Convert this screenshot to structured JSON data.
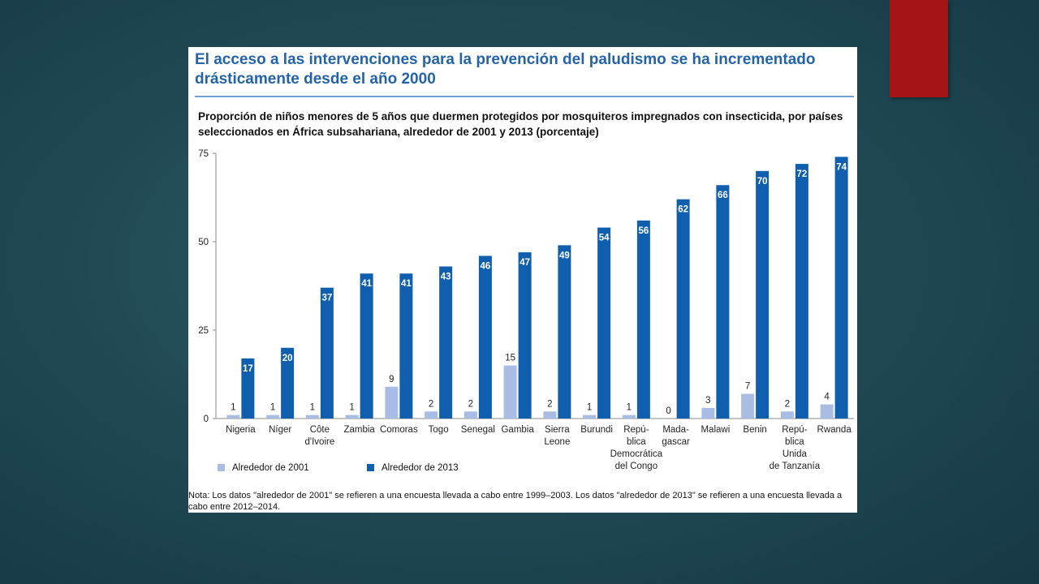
{
  "colors": {
    "series_2001": "#a9bde4",
    "series_2013": "#0f5fae",
    "accent_red": "#a61515",
    "headline": "#2463a8"
  },
  "slide": {
    "headline": "El acceso a las intervenciones para la prevención del paludismo se ha incrementado drásticamente desde el año 2000",
    "subtitle": "Proporción de niños menores de 5 años que duermen protegidos por mosquiteros impregnados con insecticida, por países seleccionados en África subsahariana, alrededor de 2001 y 2013 (porcentaje)",
    "note": "Nota: Los datos \"alrededor de 2001\" se refieren a una encuesta llevada a cabo entre 1999–2003. Los datos \"alrededor de 2013\" se refieren a una encuesta llevada a cabo entre 2012–2014."
  },
  "chart_data": {
    "type": "bar",
    "title": "Proporción de niños menores de 5 años que duermen protegidos por mosquiteros impregnados con insecticida, por países seleccionados en África subsahariana, alrededor de 2001 y 2013 (porcentaje)",
    "xlabel": "",
    "ylabel": "",
    "ylim": [
      0,
      75
    ],
    "yticks": [
      "0",
      "25",
      "50",
      "75"
    ],
    "grid": false,
    "legend_position": "bottom-left",
    "categories": [
      [
        "Nigeria"
      ],
      [
        "Níger"
      ],
      [
        "Côte",
        "d'Ivoire"
      ],
      [
        "Zambia"
      ],
      [
        "Comoras"
      ],
      [
        "Togo"
      ],
      [
        "Senegal"
      ],
      [
        "Gambia"
      ],
      [
        "Sierra",
        "Leone"
      ],
      [
        "Burundi"
      ],
      [
        "Repú-",
        "blica",
        "Democrática",
        "del Congo"
      ],
      [
        "Mada-",
        "gascar"
      ],
      [
        "Malawi"
      ],
      [
        "Benin"
      ],
      [
        "Repú-",
        "blica",
        "Unida",
        "de Tanzanía"
      ],
      [
        "Rwanda"
      ]
    ],
    "series": [
      {
        "name": "Alrededor de 2001",
        "values": [
          1,
          1,
          1,
          1,
          9,
          2,
          2,
          15,
          2,
          1,
          1,
          0,
          3,
          7,
          2,
          4
        ]
      },
      {
        "name": "Alrededor de 2013",
        "values": [
          17,
          20,
          37,
          41,
          41,
          43,
          46,
          47,
          49,
          54,
          56,
          62,
          66,
          70,
          72,
          74
        ]
      }
    ]
  }
}
